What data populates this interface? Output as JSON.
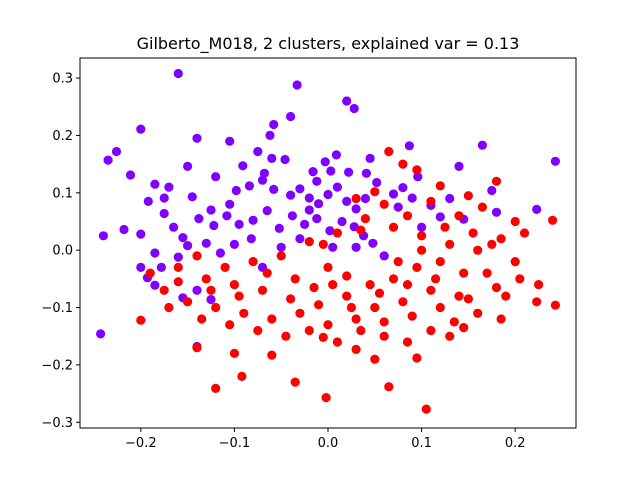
{
  "chart_data": {
    "type": "scatter",
    "title": "Gilberto_M018, 2 clusters, explained var = 0.13",
    "xlabel": "",
    "ylabel": "",
    "xlim": [
      -0.265,
      0.265
    ],
    "ylim": [
      -0.31,
      0.335
    ],
    "xticks": [
      -0.2,
      -0.1,
      0.0,
      0.1,
      0.2
    ],
    "xtick_labels": [
      "−0.2",
      "−0.1",
      "0.0",
      "0.1",
      "0.2"
    ],
    "yticks": [
      -0.3,
      -0.2,
      -0.1,
      0.0,
      0.1,
      0.2,
      0.3
    ],
    "ytick_labels": [
      "−0.3",
      "−0.2",
      "−0.1",
      "0.0",
      "0.1",
      "0.2",
      "0.3"
    ],
    "grid": false,
    "legend": "none",
    "series": [
      {
        "color": "#8000ff",
        "points": [
          [
            -0.16,
            0.308
          ],
          [
            -0.033,
            0.288
          ],
          [
            0.02,
            0.26
          ],
          [
            -0.04,
            0.233
          ],
          [
            0.028,
            0.247
          ],
          [
            -0.058,
            0.219
          ],
          [
            -0.14,
            0.195
          ],
          [
            -0.105,
            0.19
          ],
          [
            -0.062,
            0.2
          ],
          [
            -0.075,
            0.172
          ],
          [
            -0.091,
            0.147
          ],
          [
            -0.046,
            0.158
          ],
          [
            -0.016,
            0.137
          ],
          [
            -0.003,
            0.154
          ],
          [
            0.003,
            0.138
          ],
          [
            0.022,
            0.136
          ],
          [
            0.041,
            0.134
          ],
          [
            0.087,
            0.182
          ],
          [
            0.096,
            0.128
          ],
          [
            -0.2,
            0.211
          ],
          [
            -0.235,
            0.157
          ],
          [
            -0.226,
            0.172
          ],
          [
            -0.211,
            0.131
          ],
          [
            -0.185,
            0.115
          ],
          [
            -0.17,
            0.11
          ],
          [
            -0.15,
            0.146
          ],
          [
            -0.145,
            0.093
          ],
          [
            -0.125,
            0.07
          ],
          [
            -0.098,
            0.104
          ],
          [
            -0.084,
            0.112
          ],
          [
            -0.07,
            0.122
          ],
          [
            -0.058,
            0.106
          ],
          [
            -0.04,
            0.096
          ],
          [
            -0.03,
            0.107
          ],
          [
            -0.02,
            0.091
          ],
          [
            -0.01,
            0.081
          ],
          [
            0.0,
            0.097
          ],
          [
            0.01,
            0.11
          ],
          [
            0.02,
            0.085
          ],
          [
            0.03,
            0.072
          ],
          [
            0.04,
            0.09
          ],
          [
            0.052,
            0.118
          ],
          [
            0.07,
            0.098
          ],
          [
            0.08,
            0.109
          ],
          [
            0.09,
            0.091
          ],
          [
            0.11,
            0.078
          ],
          [
            0.13,
            0.09
          ],
          [
            0.14,
            0.146
          ],
          [
            0.165,
            0.183
          ],
          [
            0.175,
            0.104
          ],
          [
            0.243,
            0.155
          ],
          [
            0.223,
            0.071
          ],
          [
            0.18,
            0.066
          ],
          [
            0.145,
            0.054
          ],
          [
            0.12,
            0.058
          ],
          [
            -0.218,
            0.036
          ],
          [
            -0.2,
            0.028
          ],
          [
            -0.192,
            0.085
          ],
          [
            -0.175,
            0.064
          ],
          [
            -0.165,
            0.04
          ],
          [
            -0.155,
            0.022
          ],
          [
            -0.138,
            0.055
          ],
          [
            -0.122,
            0.043
          ],
          [
            -0.108,
            0.06
          ],
          [
            -0.095,
            0.045
          ],
          [
            -0.08,
            0.052
          ],
          [
            -0.065,
            0.069
          ],
          [
            -0.052,
            0.038
          ],
          [
            -0.038,
            0.06
          ],
          [
            -0.025,
            0.045
          ],
          [
            -0.012,
            0.055
          ],
          [
            0.002,
            0.034
          ],
          [
            0.015,
            0.05
          ],
          [
            0.028,
            0.041
          ],
          [
            0.038,
            0.025
          ],
          [
            -0.185,
            -0.005
          ],
          [
            -0.178,
            -0.03
          ],
          [
            -0.2,
            -0.03
          ],
          [
            -0.193,
            -0.048
          ],
          [
            -0.185,
            -0.061
          ],
          [
            -0.16,
            -0.012
          ],
          [
            -0.15,
            0.008
          ],
          [
            -0.13,
            0.012
          ],
          [
            -0.115,
            -0.005
          ],
          [
            -0.1,
            0.01
          ],
          [
            -0.24,
            0.025
          ],
          [
            -0.243,
            -0.146
          ],
          [
            -0.14,
            -0.168
          ],
          [
            -0.125,
            -0.086
          ],
          [
            -0.14,
            -0.07
          ],
          [
            -0.155,
            -0.083
          ],
          [
            -0.07,
            -0.03
          ],
          [
            -0.05,
            0.005
          ],
          [
            -0.03,
            0.02
          ],
          [
            0.005,
            0.005
          ],
          [
            0.03,
            0.005
          ],
          [
            0.048,
            0.012
          ],
          [
            0.06,
            -0.01
          ],
          [
            0.009,
            0.166
          ],
          [
            -0.068,
            0.134
          ],
          [
            -0.12,
            0.128
          ],
          [
            -0.175,
            0.091
          ],
          [
            0.075,
            0.075
          ],
          [
            0.1,
            0.04
          ],
          [
            -0.06,
            0.16
          ],
          [
            0.045,
            0.16
          ],
          [
            -0.012,
            0.12
          ],
          [
            -0.105,
            0.08
          ],
          [
            -0.082,
            0.02
          ],
          [
            -0.02,
            0.07
          ]
        ]
      },
      {
        "color": "#ff0000",
        "points": [
          [
            0.105,
            -0.277
          ],
          [
            -0.002,
            -0.257
          ],
          [
            -0.12,
            -0.241
          ],
          [
            -0.092,
            -0.22
          ],
          [
            -0.035,
            -0.23
          ],
          [
            0.065,
            -0.238
          ],
          [
            0.095,
            -0.188
          ],
          [
            0.05,
            -0.19
          ],
          [
            0.03,
            -0.173
          ],
          [
            -0.06,
            -0.183
          ],
          [
            -0.14,
            -0.17
          ],
          [
            -0.1,
            -0.18
          ],
          [
            0.01,
            -0.16
          ],
          [
            -0.005,
            -0.152
          ],
          [
            0.13,
            -0.15
          ],
          [
            0.145,
            -0.135
          ],
          [
            0.185,
            -0.12
          ],
          [
            0.243,
            -0.096
          ],
          [
            0.223,
            -0.09
          ],
          [
            0.18,
            -0.065
          ],
          [
            0.225,
            -0.06
          ],
          [
            0.14,
            -0.08
          ],
          [
            0.11,
            -0.07
          ],
          [
            0.08,
            -0.09
          ],
          [
            0.05,
            -0.1
          ],
          [
            0.02,
            -0.08
          ],
          [
            -0.01,
            -0.095
          ],
          [
            -0.04,
            -0.085
          ],
          [
            -0.07,
            -0.07
          ],
          [
            -0.1,
            -0.06
          ],
          [
            -0.13,
            -0.05
          ],
          [
            -0.16,
            -0.03
          ],
          [
            -0.2,
            -0.122
          ],
          [
            -0.175,
            -0.07
          ],
          [
            -0.15,
            -0.09
          ],
          [
            -0.12,
            -0.1
          ],
          [
            -0.09,
            -0.11
          ],
          [
            -0.06,
            -0.12
          ],
          [
            -0.03,
            -0.11
          ],
          [
            0.0,
            -0.13
          ],
          [
            0.03,
            -0.12
          ],
          [
            0.06,
            -0.125
          ],
          [
            0.09,
            -0.115
          ],
          [
            0.12,
            -0.1
          ],
          [
            0.15,
            -0.085
          ],
          [
            0.17,
            -0.04
          ],
          [
            0.2,
            -0.02
          ],
          [
            0.21,
            0.03
          ],
          [
            0.2,
            0.05
          ],
          [
            0.185,
            0.02
          ],
          [
            0.16,
            0.0
          ],
          [
            0.13,
            0.01
          ],
          [
            0.1,
            0.025
          ],
          [
            0.07,
            0.04
          ],
          [
            0.04,
            0.055
          ],
          [
            0.01,
            0.03
          ],
          [
            -0.02,
            0.015
          ],
          [
            -0.05,
            -0.01
          ],
          [
            -0.08,
            -0.02
          ],
          [
            -0.11,
            -0.03
          ],
          [
            -0.14,
            -0.01
          ],
          [
            0.24,
            0.052
          ],
          [
            0.18,
            0.12
          ],
          [
            0.165,
            0.075
          ],
          [
            0.12,
            0.112
          ],
          [
            0.095,
            0.14
          ],
          [
            0.08,
            0.15
          ],
          [
            0.065,
            0.172
          ],
          [
            0.05,
            0.102
          ],
          [
            0.03,
            0.09
          ],
          [
            0.0,
            -0.03
          ],
          [
            0.02,
            -0.045
          ],
          [
            0.045,
            -0.06
          ],
          [
            0.07,
            -0.05
          ],
          [
            0.095,
            -0.03
          ],
          [
            0.12,
            -0.02
          ],
          [
            0.145,
            -0.04
          ],
          [
            0.16,
            -0.11
          ],
          [
            0.135,
            -0.125
          ],
          [
            0.11,
            -0.14
          ],
          [
            0.085,
            -0.16
          ],
          [
            0.06,
            -0.15
          ],
          [
            0.035,
            -0.14
          ],
          [
            -0.02,
            -0.14
          ],
          [
            -0.045,
            -0.15
          ],
          [
            -0.075,
            -0.14
          ],
          [
            -0.105,
            -0.13
          ],
          [
            -0.135,
            -0.12
          ],
          [
            -0.17,
            -0.1
          ],
          [
            -0.16,
            -0.055
          ],
          [
            -0.19,
            -0.04
          ],
          [
            0.205,
            -0.05
          ],
          [
            0.19,
            -0.08
          ],
          [
            0.175,
            0.01
          ],
          [
            0.155,
            0.03
          ],
          [
            0.14,
            0.06
          ],
          [
            0.11,
            0.085
          ],
          [
            0.085,
            0.06
          ],
          [
            0.06,
            0.08
          ],
          [
            0.035,
            0.035
          ],
          [
            -0.005,
            0.01
          ],
          [
            -0.035,
            -0.05
          ],
          [
            -0.065,
            -0.04
          ],
          [
            -0.095,
            -0.08
          ],
          [
            -0.125,
            -0.07
          ],
          [
            0.005,
            -0.06
          ],
          [
            0.025,
            -0.1
          ],
          [
            0.055,
            -0.075
          ],
          [
            0.075,
            -0.02
          ],
          [
            0.1,
            0.0
          ],
          [
            0.125,
            0.04
          ],
          [
            0.15,
            0.095
          ],
          [
            0.115,
            -0.05
          ],
          [
            0.085,
            -0.06
          ],
          [
            -0.015,
            -0.065
          ]
        ]
      }
    ]
  }
}
